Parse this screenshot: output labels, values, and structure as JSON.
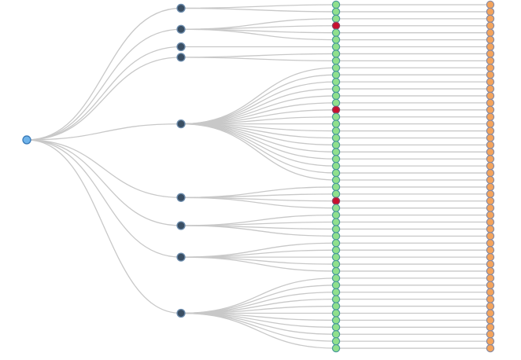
{
  "tree": {
    "groups": [
      {
        "leaf_count": 2
      },
      {
        "leaf_count": 4
      },
      {
        "leaf_count": 1
      },
      {
        "leaf_count": 2
      },
      {
        "leaf_count": 17
      },
      {
        "leaf_count": 4
      },
      {
        "leaf_count": 4
      },
      {
        "leaf_count": 5
      },
      {
        "leaf_count": 11
      }
    ],
    "highlighted_leaves": [
      3,
      15,
      28
    ]
  }
}
